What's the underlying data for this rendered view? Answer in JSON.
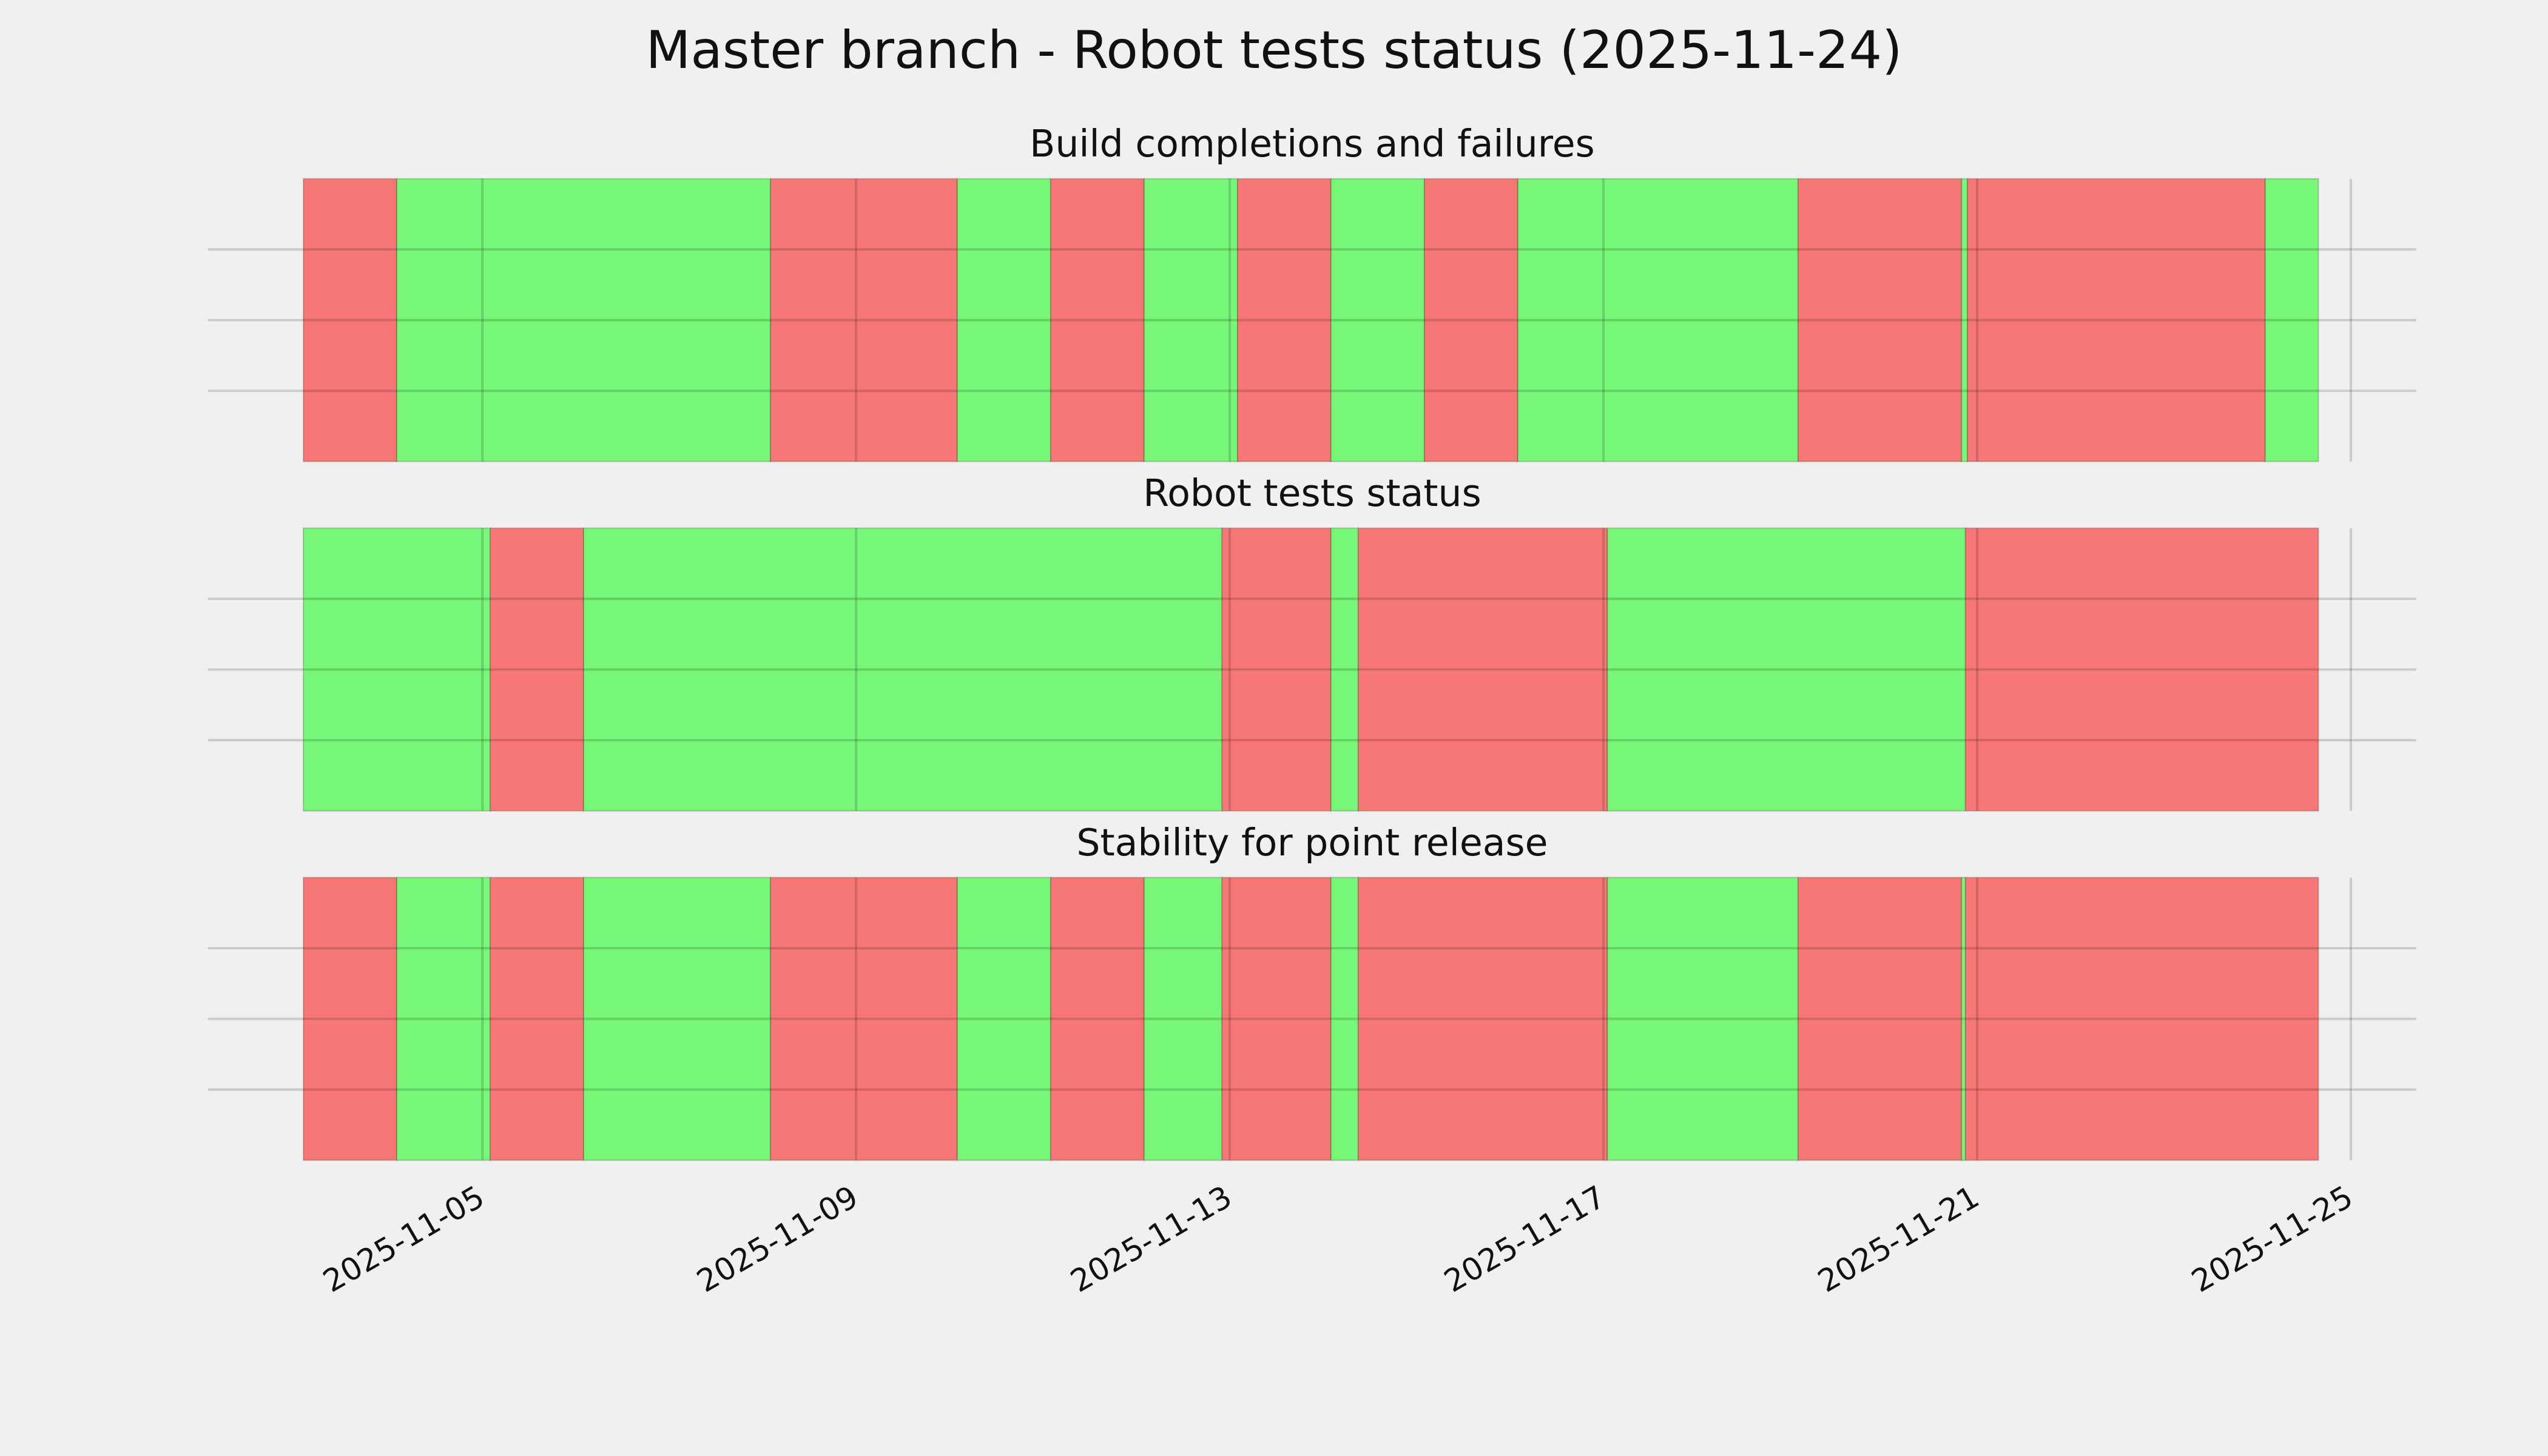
{
  "title": "Master branch - Robot tests status (2025-11-24)",
  "chart_data": [
    {
      "type": "timeline",
      "title": "Build completions and failures",
      "xlim": [
        "2025-11-02T01:30",
        "2025-11-25T16:50"
      ],
      "ylim": [
        0,
        1
      ],
      "yticks": [
        0.25,
        0.5,
        0.75
      ],
      "grid": true,
      "xticks": [
        "2025-11-05",
        "2025-11-09",
        "2025-11-13",
        "2025-11-17",
        "2025-11-21",
        "2025-11-25"
      ],
      "segments": [
        {
          "start": "2025-11-03T02:00",
          "end": "2025-11-04T02:00",
          "color": "#f77777"
        },
        {
          "start": "2025-11-04T02:00",
          "end": "2025-11-08T02:00",
          "color": "#77f777"
        },
        {
          "start": "2025-11-08T02:00",
          "end": "2025-11-10T02:00",
          "color": "#f77777"
        },
        {
          "start": "2025-11-10T02:00",
          "end": "2025-11-11T02:00",
          "color": "#77f777"
        },
        {
          "start": "2025-11-11T02:00",
          "end": "2025-11-12T02:00",
          "color": "#f77777"
        },
        {
          "start": "2025-11-12T02:00",
          "end": "2025-11-13T02:00",
          "color": "#77f777"
        },
        {
          "start": "2025-11-13T02:00",
          "end": "2025-11-14T02:00",
          "color": "#f77777"
        },
        {
          "start": "2025-11-14T02:00",
          "end": "2025-11-15T02:00",
          "color": "#77f777"
        },
        {
          "start": "2025-11-15T02:00",
          "end": "2025-11-16T02:00",
          "color": "#f77777"
        },
        {
          "start": "2025-11-16T02:00",
          "end": "2025-11-19T02:00",
          "color": "#77f777"
        },
        {
          "start": "2025-11-19T02:00",
          "end": "2025-11-20T20:00",
          "color": "#f77777"
        },
        {
          "start": "2025-11-20T20:00",
          "end": "2025-11-20T21:30",
          "color": "#77f777"
        },
        {
          "start": "2025-11-20T21:30",
          "end": "2025-11-24T02:00",
          "color": "#f77777"
        },
        {
          "start": "2025-11-24T02:00",
          "end": "2025-11-24T15:40",
          "color": "#77f777"
        }
      ]
    },
    {
      "type": "timeline",
      "title": "Robot tests status",
      "xlim": [
        "2025-11-02T01:30",
        "2025-11-25T16:50"
      ],
      "ylim": [
        0,
        1
      ],
      "yticks": [
        0.25,
        0.5,
        0.75
      ],
      "grid": true,
      "xticks": [
        "2025-11-05",
        "2025-11-09",
        "2025-11-13",
        "2025-11-17",
        "2025-11-21",
        "2025-11-25"
      ],
      "segments": [
        {
          "start": "2025-11-03T02:00",
          "end": "2025-11-05T02:00",
          "color": "#77f777"
        },
        {
          "start": "2025-11-05T02:00",
          "end": "2025-11-06T02:00",
          "color": "#f77777"
        },
        {
          "start": "2025-11-06T02:00",
          "end": "2025-11-12T22:00",
          "color": "#77f777"
        },
        {
          "start": "2025-11-12T22:00",
          "end": "2025-11-14T02:00",
          "color": "#f77777"
        },
        {
          "start": "2025-11-14T02:00",
          "end": "2025-11-14T09:00",
          "color": "#77f777"
        },
        {
          "start": "2025-11-14T09:00",
          "end": "2025-11-17T01:00",
          "color": "#f77777"
        },
        {
          "start": "2025-11-17T01:00",
          "end": "2025-11-20T21:00",
          "color": "#77f777"
        },
        {
          "start": "2025-11-20T21:00",
          "end": "2025-11-24T15:40",
          "color": "#f77777"
        }
      ]
    },
    {
      "type": "timeline",
      "title": "Stability for point release",
      "xlim": [
        "2025-11-02T01:30",
        "2025-11-25T16:50"
      ],
      "ylim": [
        0,
        1
      ],
      "yticks": [
        0.25,
        0.5,
        0.75
      ],
      "grid": true,
      "xticks": [
        "2025-11-05",
        "2025-11-09",
        "2025-11-13",
        "2025-11-17",
        "2025-11-21",
        "2025-11-25"
      ],
      "segments": [
        {
          "start": "2025-11-03T02:00",
          "end": "2025-11-04T02:00",
          "color": "#f77777"
        },
        {
          "start": "2025-11-04T02:00",
          "end": "2025-11-05T02:00",
          "color": "#77f777"
        },
        {
          "start": "2025-11-05T02:00",
          "end": "2025-11-06T02:00",
          "color": "#f77777"
        },
        {
          "start": "2025-11-06T02:00",
          "end": "2025-11-08T02:00",
          "color": "#77f777"
        },
        {
          "start": "2025-11-08T02:00",
          "end": "2025-11-10T02:00",
          "color": "#f77777"
        },
        {
          "start": "2025-11-10T02:00",
          "end": "2025-11-11T02:00",
          "color": "#77f777"
        },
        {
          "start": "2025-11-11T02:00",
          "end": "2025-11-12T02:00",
          "color": "#f77777"
        },
        {
          "start": "2025-11-12T02:00",
          "end": "2025-11-12T22:00",
          "color": "#77f777"
        },
        {
          "start": "2025-11-12T22:00",
          "end": "2025-11-14T02:00",
          "color": "#f77777"
        },
        {
          "start": "2025-11-14T02:00",
          "end": "2025-11-14T09:00",
          "color": "#77f777"
        },
        {
          "start": "2025-11-14T09:00",
          "end": "2025-11-17T01:00",
          "color": "#f77777"
        },
        {
          "start": "2025-11-17T01:00",
          "end": "2025-11-19T02:00",
          "color": "#77f777"
        },
        {
          "start": "2025-11-19T02:00",
          "end": "2025-11-20T20:00",
          "color": "#f77777"
        },
        {
          "start": "2025-11-20T20:00",
          "end": "2025-11-20T21:00",
          "color": "#77f777"
        },
        {
          "start": "2025-11-20T21:00",
          "end": "2025-11-24T15:40",
          "color": "#f77777"
        }
      ]
    }
  ]
}
